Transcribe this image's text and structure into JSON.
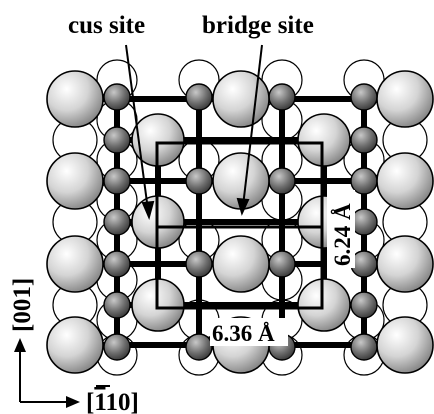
{
  "labels": {
    "cus_site": "cus site",
    "bridge_site": "bridge site",
    "dim_horizontal": "6.36 Å",
    "dim_vertical": "6.24 Å",
    "axis_vertical": "[001]",
    "axis_horizontal_prefix": "[",
    "axis_horizontal_bar_digit": "1",
    "axis_horizontal_suffix": "10]"
  },
  "colors": {
    "background": "#ffffff",
    "line": "#000000",
    "large_atom_light": "#ffffff",
    "large_atom_dark": "#8a8a8a",
    "small_atom_light": "#c8c8c8",
    "small_atom_dark": "#3a3a3a",
    "ring_fill": "#ffffff"
  }
}
